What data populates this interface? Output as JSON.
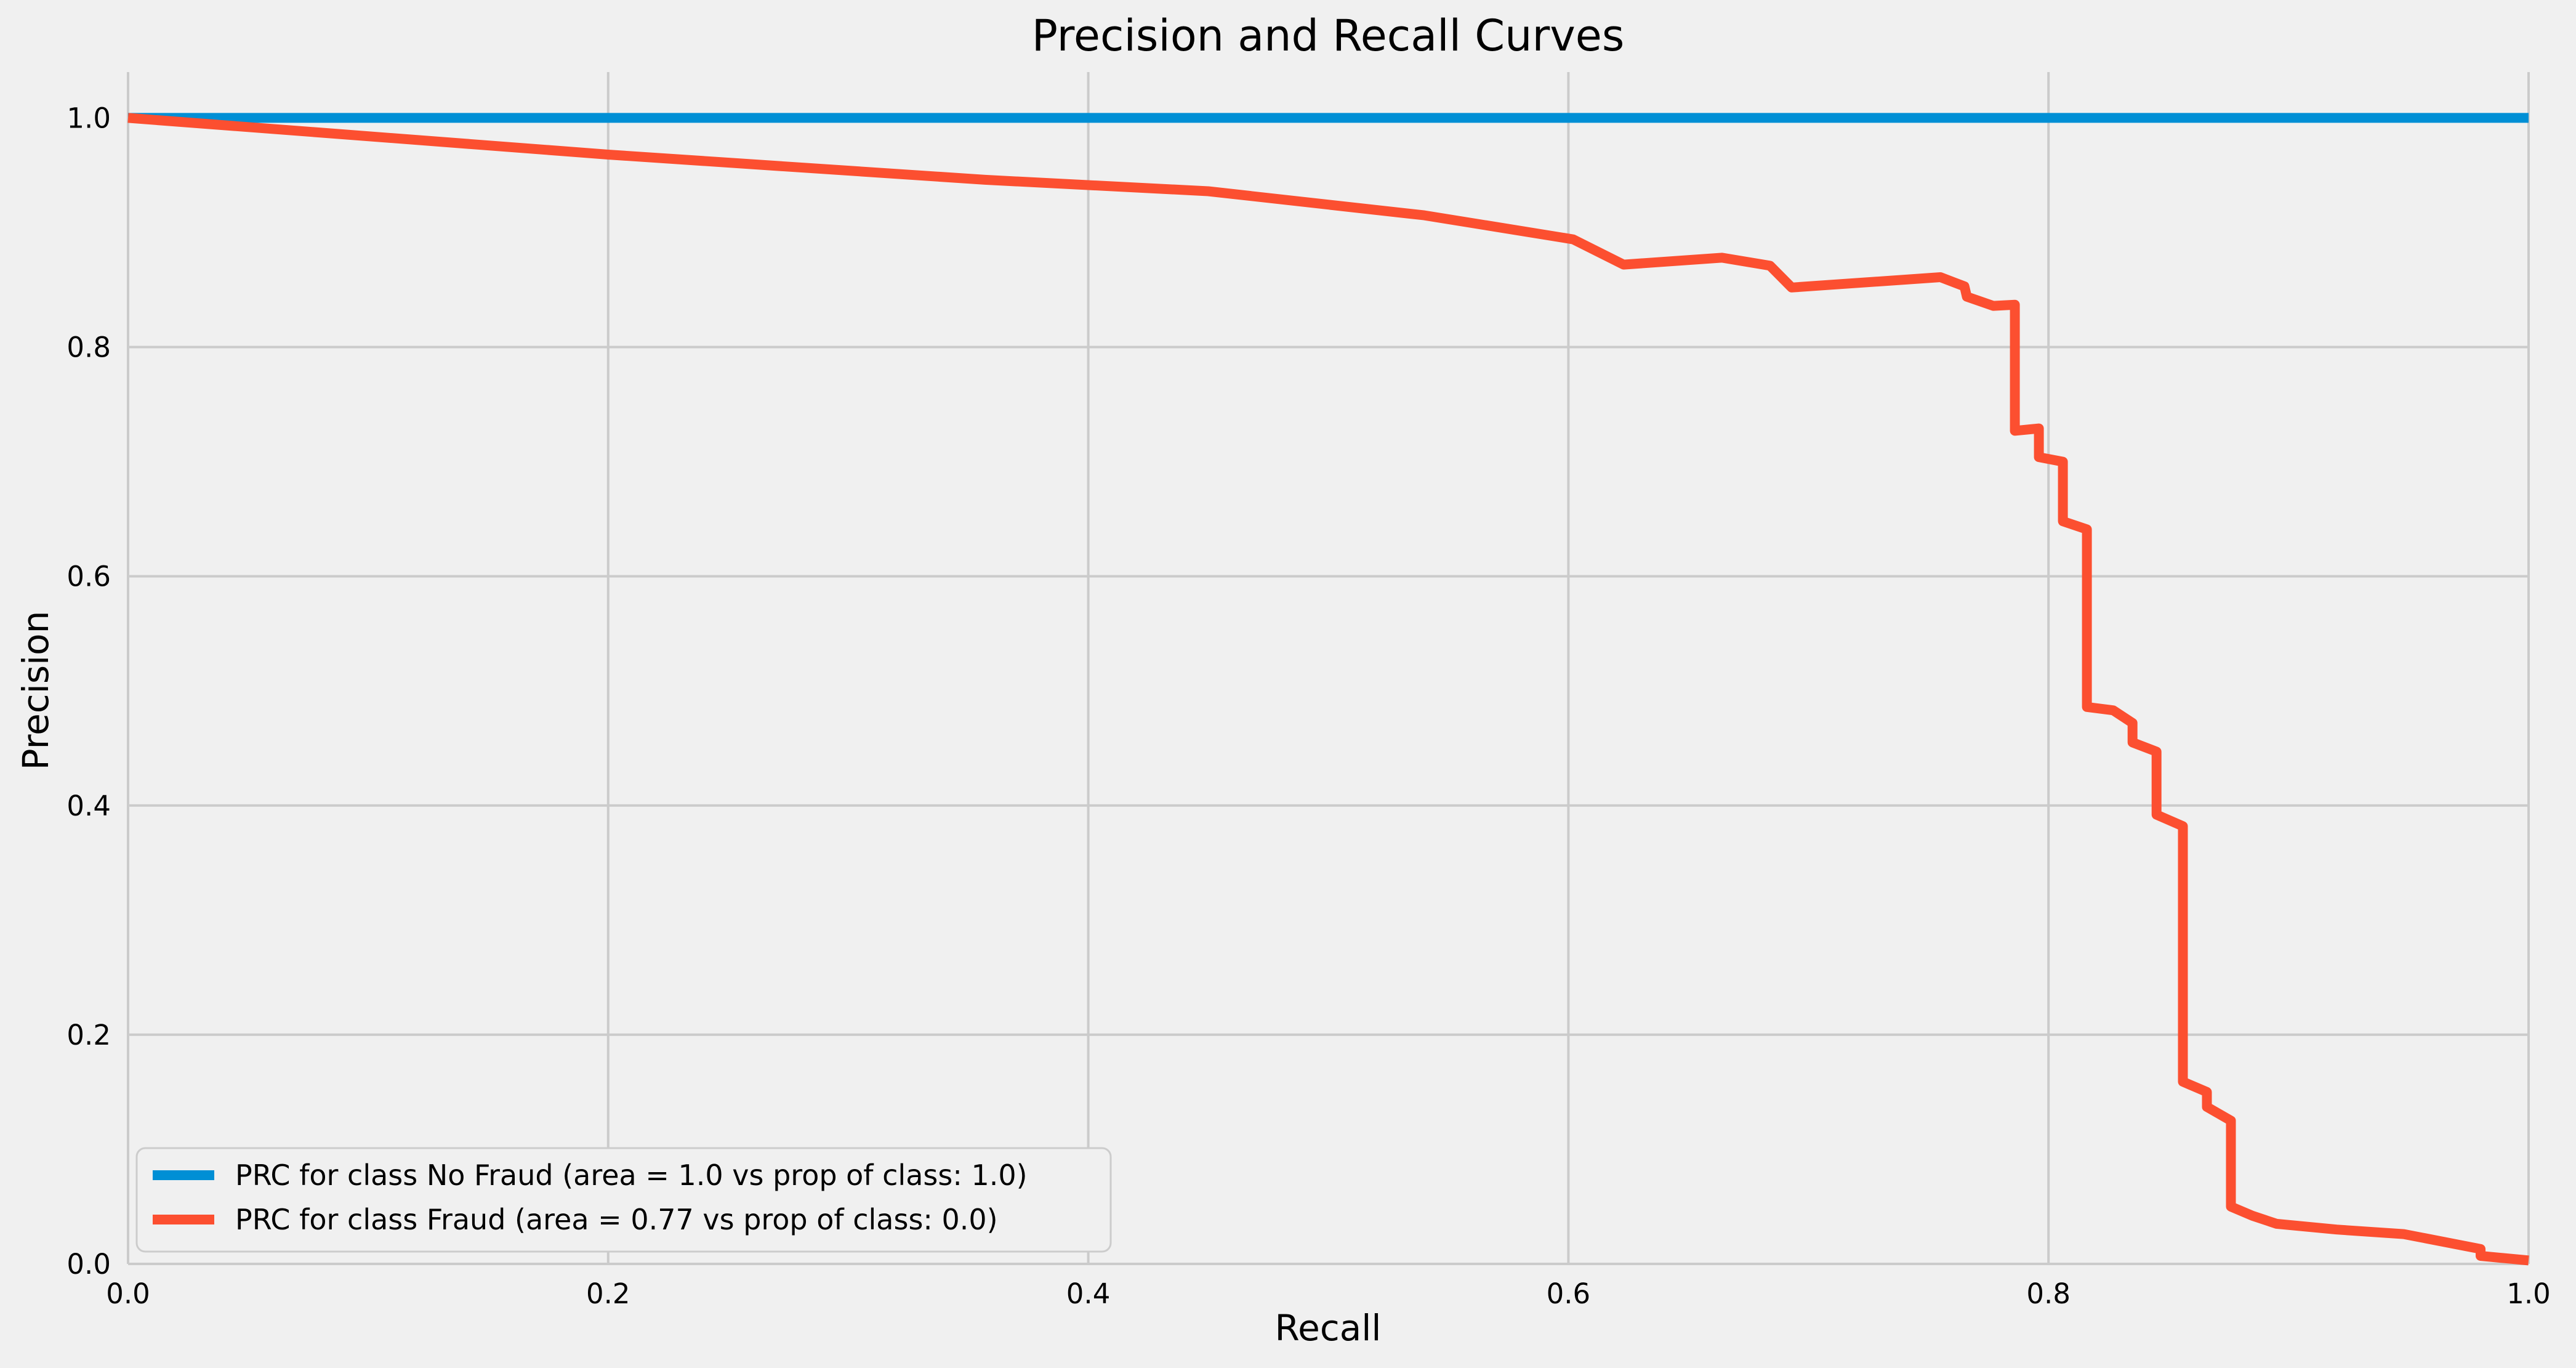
{
  "chart_data": {
    "type": "line",
    "title": "Precision and Recall Curves",
    "xlabel": "Recall",
    "ylabel": "Precision",
    "xlim": [
      0.0,
      1.0
    ],
    "ylim": [
      0.0,
      1.04
    ],
    "xticks": [
      0.0,
      0.2,
      0.4,
      0.6,
      0.8,
      1.0
    ],
    "xtick_labels": [
      "0.0",
      "0.2",
      "0.4",
      "0.6",
      "0.8",
      "1.0"
    ],
    "yticks": [
      0.0,
      0.2,
      0.4,
      0.6,
      0.8,
      1.0
    ],
    "ytick_labels": [
      "0.0",
      "0.2",
      "0.4",
      "0.6",
      "0.8",
      "1.0"
    ],
    "grid": true,
    "legend_position": "lower-left",
    "background_color": "#f0f0f0",
    "grid_color": "#cbcbcb",
    "series": [
      {
        "name": "PRC for class No Fraud (area = 1.0 vs prop of class: 1.0)",
        "color": "#008fd5",
        "x": [
          0.0,
          1.0
        ],
        "y": [
          1.0,
          1.0
        ]
      },
      {
        "name": "PRC for class Fraud (area = 0.77 vs prop of class: 0.0)",
        "color": "#fc4f30",
        "x": [
          0.0,
          0.2,
          0.357,
          0.45,
          0.54,
          0.602,
          0.623,
          0.664,
          0.684,
          0.693,
          0.755,
          0.765,
          0.766,
          0.777,
          0.786,
          0.786,
          0.796,
          0.796,
          0.806,
          0.806,
          0.816,
          0.816,
          0.827,
          0.835,
          0.835,
          0.845,
          0.845,
          0.856,
          0.856,
          0.866,
          0.866,
          0.876,
          0.876,
          0.885,
          0.895,
          0.92,
          0.948,
          0.98,
          0.98,
          1.0
        ],
        "y": [
          1.0,
          0.968,
          0.946,
          0.936,
          0.915,
          0.894,
          0.872,
          0.878,
          0.871,
          0.852,
          0.861,
          0.853,
          0.844,
          0.836,
          0.837,
          0.727,
          0.729,
          0.704,
          0.7,
          0.648,
          0.641,
          0.486,
          0.483,
          0.472,
          0.455,
          0.447,
          0.392,
          0.382,
          0.159,
          0.15,
          0.137,
          0.125,
          0.05,
          0.042,
          0.035,
          0.03,
          0.026,
          0.013,
          0.007,
          0.003
        ]
      }
    ]
  }
}
